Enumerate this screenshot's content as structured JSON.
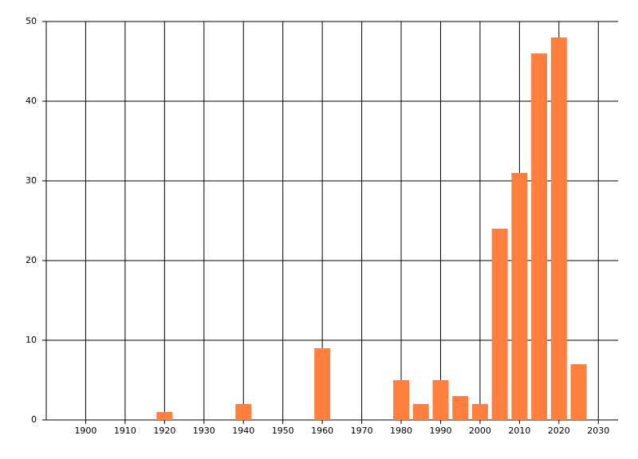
{
  "chart_data": {
    "type": "bar",
    "x": [
      1920,
      1940,
      1960,
      1980,
      1985,
      1990,
      1995,
      2000,
      2005,
      2010,
      2015,
      2020,
      2025
    ],
    "values": [
      1,
      2,
      9,
      5,
      2,
      5,
      3,
      2,
      24,
      31,
      46,
      48,
      7
    ],
    "color": "#ff7f3f",
    "xlim": [
      1890,
      2035
    ],
    "xticks": [
      1900,
      1910,
      1920,
      1930,
      1940,
      1950,
      1960,
      1970,
      1980,
      1990,
      2000,
      2010,
      2020,
      2030
    ],
    "ylim": [
      0,
      50
    ],
    "yticks": [
      0,
      10,
      20,
      30,
      40,
      50
    ],
    "grid": true
  }
}
